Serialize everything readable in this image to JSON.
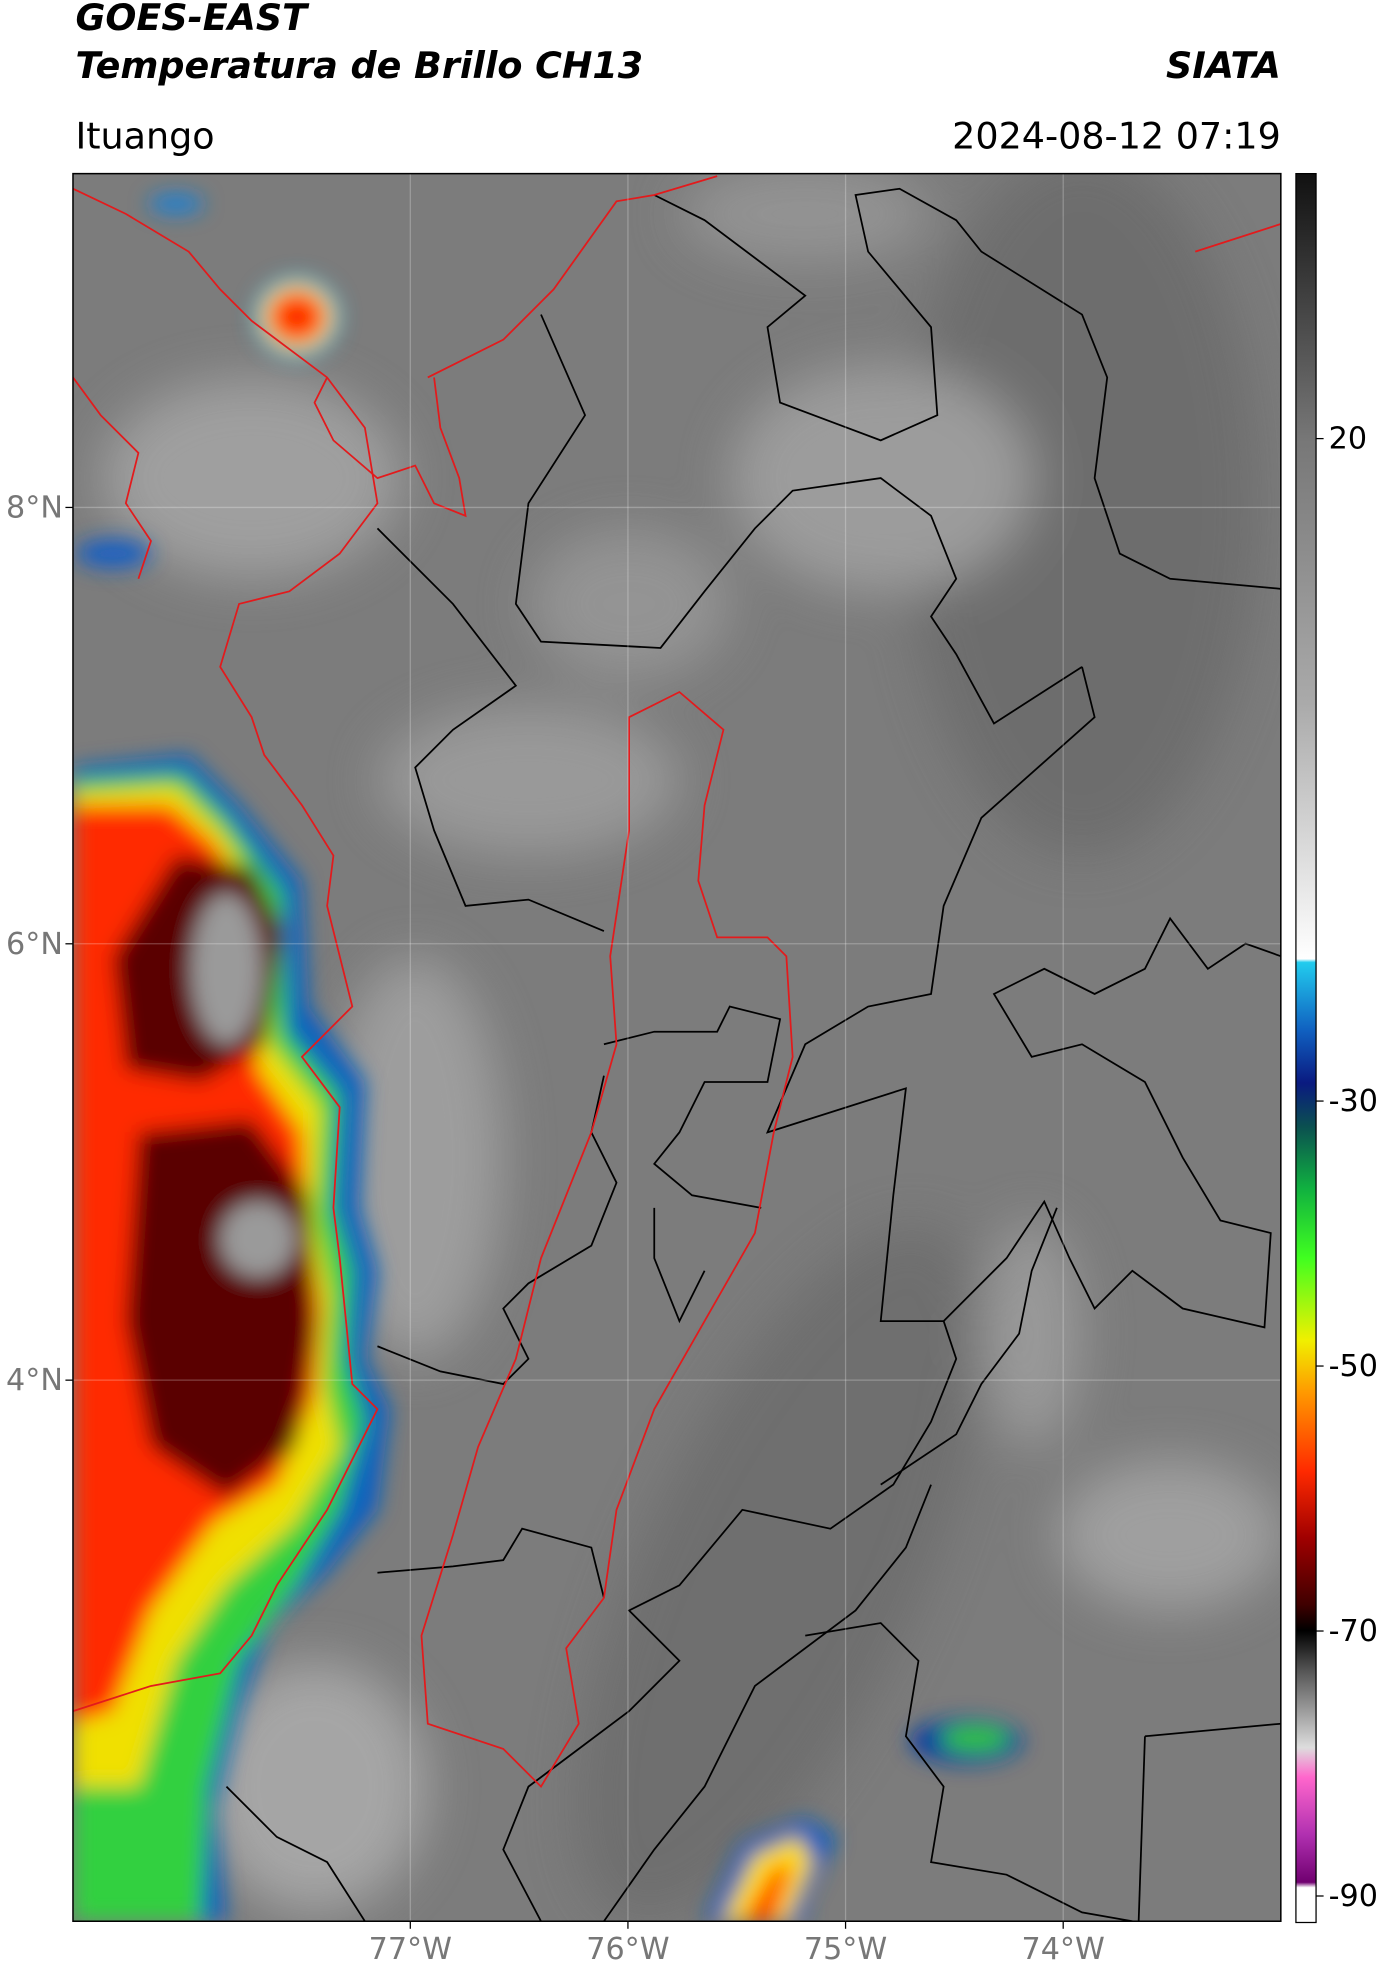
{
  "header": {
    "title": "GOES-EAST",
    "subtitle": "Temperatura de Brillo CH13",
    "source": "SIATA",
    "location": "Ituango",
    "timestamp": "2024-08-12 07:19"
  },
  "map": {
    "xlim": [
      -78.55,
      -73.0
    ],
    "ylim": [
      1.52,
      9.53
    ],
    "xticks": [
      {
        "value": -77,
        "label": "77°W"
      },
      {
        "value": -76,
        "label": "76°W"
      },
      {
        "value": -75,
        "label": "75°W"
      },
      {
        "value": -74,
        "label": "74°W"
      }
    ],
    "yticks": [
      {
        "value": 8,
        "label": "8°N"
      },
      {
        "value": 6,
        "label": "6°N"
      },
      {
        "value": 4,
        "label": "4°N"
      }
    ],
    "grid": true
  },
  "colorbar": {
    "lim": [
      -92,
      40
    ],
    "ticks": [
      20,
      -30,
      -50,
      -70,
      -90
    ]
  }
}
